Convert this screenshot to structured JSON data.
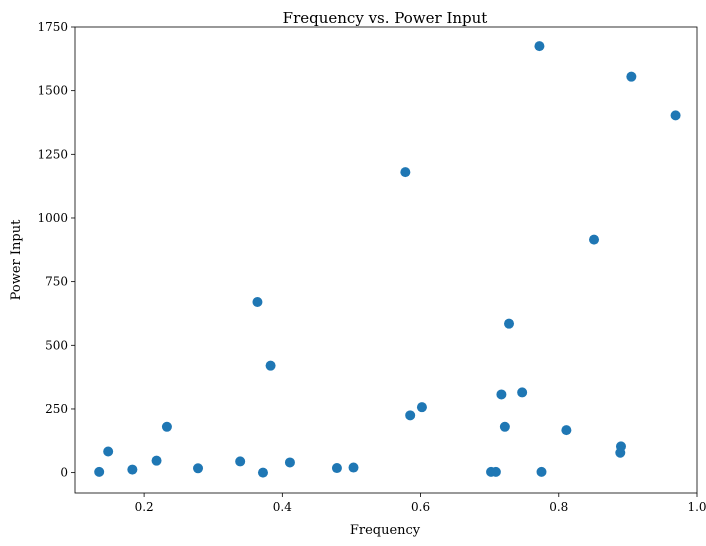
{
  "chart_data": {
    "type": "scatter",
    "title": "Frequency vs. Power Input",
    "xlabel": "Frequency",
    "ylabel": "Power Input",
    "xlim": [
      0.1,
      1.0
    ],
    "ylim": [
      -80,
      1750
    ],
    "xticks": [
      "0.2",
      "0.4",
      "0.6",
      "0.8",
      "1.0"
    ],
    "yticks": [
      "0",
      "250",
      "500",
      "750",
      "1000",
      "1250",
      "1500",
      "1750"
    ],
    "xtick_values": [
      0.2,
      0.4,
      0.6,
      0.8,
      1.0
    ],
    "ytick_values": [
      0,
      250,
      500,
      750,
      1000,
      1250,
      1500,
      1750
    ],
    "grid": false,
    "marker_color": "#1f77b4",
    "series": [
      {
        "x": [
          0.135,
          0.148,
          0.183,
          0.218,
          0.233,
          0.278,
          0.339,
          0.364,
          0.372,
          0.383,
          0.411,
          0.479,
          0.503,
          0.578,
          0.585,
          0.602,
          0.702,
          0.709,
          0.717,
          0.722,
          0.728,
          0.747,
          0.772,
          0.775,
          0.811,
          0.851,
          0.889,
          0.89,
          0.905,
          0.969
        ],
        "y": [
          3,
          83,
          12,
          47,
          180,
          17,
          44,
          670,
          0,
          420,
          40,
          18,
          20,
          1180,
          225,
          257,
          3,
          3,
          307,
          180,
          585,
          315,
          1675,
          3,
          167,
          915,
          78,
          103,
          1555,
          1403
        ]
      }
    ]
  }
}
